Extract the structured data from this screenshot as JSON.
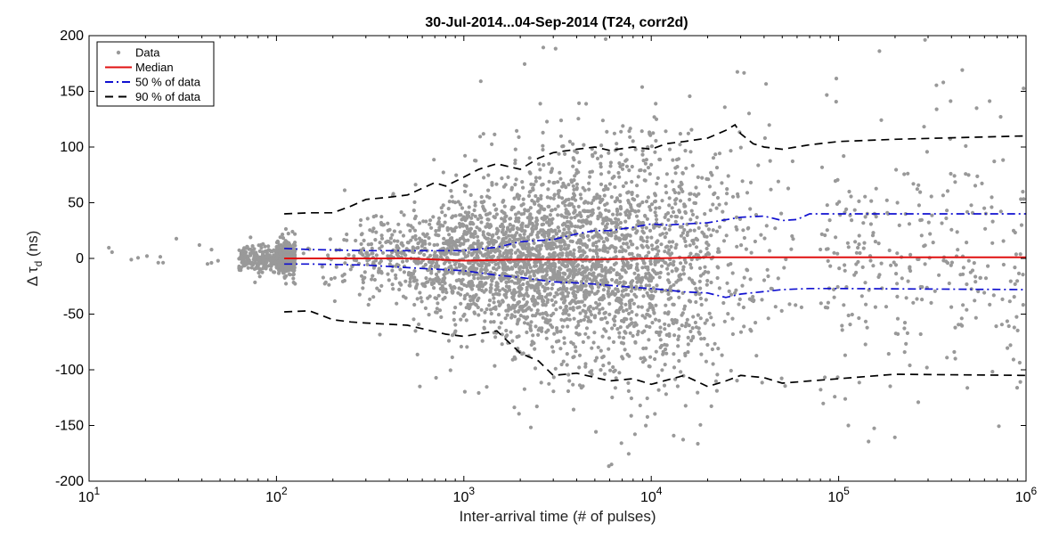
{
  "chart_data": {
    "type": "scatter",
    "title": "30-Jul-2014...04-Sep-2014 (T24, corr2d)",
    "xlabel": "Inter-arrival time (# of pulses)",
    "ylabel": "Δ τ_d (ns)",
    "ylabel_main": "Δ τ",
    "ylabel_sub": "d",
    "ylabel_unit": " (ns)",
    "xscale": "log",
    "xlim": [
      10,
      1000000
    ],
    "ylim": [
      -200,
      200
    ],
    "x_ticks": [
      {
        "base": "10",
        "exp": "1",
        "value": 10
      },
      {
        "base": "10",
        "exp": "2",
        "value": 100
      },
      {
        "base": "10",
        "exp": "3",
        "value": 1000
      },
      {
        "base": "10",
        "exp": "4",
        "value": 10000
      },
      {
        "base": "10",
        "exp": "5",
        "value": 100000
      },
      {
        "base": "10",
        "exp": "6",
        "value": 1000000
      }
    ],
    "y_ticks": [
      "-200",
      "-150",
      "-100",
      "-50",
      "0",
      "50",
      "100",
      "150",
      "200"
    ],
    "legend": [
      {
        "label": "Data",
        "style": "dots",
        "color": "#999999"
      },
      {
        "label": "Median",
        "style": "solid",
        "color": "#e01010"
      },
      {
        "label": "50 % of data",
        "style": "dashdot",
        "color": "#1010d0"
      },
      {
        "label": "90 % of data",
        "style": "dashed",
        "color": "#000000"
      }
    ],
    "legend_position": "top-left",
    "series": [
      {
        "name": "Median",
        "color": "#e01010",
        "x": [
          110,
          200,
          500,
          1000,
          2000,
          5000,
          10000,
          20000,
          50000,
          100000,
          1000000
        ],
        "y": [
          0,
          0,
          0,
          -2,
          -1,
          -1,
          0,
          1,
          1,
          1,
          1
        ]
      },
      {
        "name": "50 % of data (upper)",
        "color": "#1010d0",
        "x": [
          110,
          150,
          300,
          600,
          1000,
          1500,
          2000,
          3000,
          4000,
          5000,
          6000,
          8000,
          10000,
          12000,
          20000,
          30000,
          40000,
          50000,
          60000,
          70000,
          100000,
          1000000
        ],
        "y": [
          9,
          8,
          7,
          7,
          7,
          10,
          15,
          17,
          22,
          25,
          25,
          28,
          31,
          30,
          32,
          37,
          38,
          34,
          35,
          40,
          40,
          40
        ]
      },
      {
        "name": "50 % of data (lower)",
        "color": "#1010d0",
        "x": [
          110,
          150,
          300,
          600,
          1000,
          1500,
          2000,
          3000,
          4000,
          5000,
          8000,
          10000,
          15000,
          20000,
          25000,
          30000,
          50000,
          70000,
          100000,
          1000000
        ],
        "y": [
          -5,
          -5,
          -6,
          -9,
          -11,
          -15,
          -17,
          -21,
          -22,
          -23,
          -26,
          -27,
          -30,
          -31,
          -35,
          -32,
          -28,
          -27,
          -27,
          -28
        ]
      },
      {
        "name": "90 % of data (upper)",
        "color": "#000000",
        "x": [
          110,
          150,
          200,
          250,
          300,
          400,
          500,
          600,
          700,
          800,
          1000,
          1200,
          1500,
          2000,
          2500,
          3000,
          4000,
          5000,
          6000,
          8000,
          10000,
          12000,
          15000,
          20000,
          25000,
          28000,
          30000,
          35000,
          40000,
          50000,
          70000,
          100000,
          200000,
          1000000
        ],
        "y": [
          40,
          41,
          41,
          47,
          53,
          55,
          57,
          63,
          68,
          65,
          73,
          80,
          85,
          80,
          90,
          95,
          98,
          100,
          97,
          100,
          98,
          103,
          105,
          108,
          115,
          120,
          112,
          103,
          100,
          98,
          102,
          105,
          107,
          110
        ]
      },
      {
        "name": "90 % of data (lower)",
        "color": "#000000",
        "x": [
          110,
          150,
          200,
          250,
          300,
          500,
          800,
          1000,
          1500,
          2000,
          2500,
          3000,
          4000,
          6000,
          8000,
          10000,
          15000,
          20000,
          25000,
          30000,
          40000,
          50000,
          70000,
          100000,
          200000,
          1000000
        ],
        "y": [
          -48,
          -47,
          -55,
          -57,
          -58,
          -60,
          -68,
          -70,
          -65,
          -85,
          -92,
          -105,
          -103,
          -110,
          -108,
          -113,
          -105,
          -115,
          -110,
          -105,
          -107,
          -112,
          -110,
          -108,
          -104,
          -105
        ]
      }
    ],
    "scatter": {
      "name": "Data",
      "color": "#999999",
      "n_points": 4200,
      "note": "dense cloud; vertical spread grows from ~±10 ns near 10^2 to ~±120 ns near 10^4–10^5; sparse beyond 10^5",
      "density_profile": [
        {
          "x": 10,
          "relative": 0.01
        },
        {
          "x": 100,
          "relative": 0.15
        },
        {
          "x": 1000,
          "relative": 0.6
        },
        {
          "x": 10000,
          "relative": 1.0
        },
        {
          "x": 50000,
          "relative": 0.7
        },
        {
          "x": 100000,
          "relative": 0.15
        },
        {
          "x": 1000000,
          "relative": 0.02
        }
      ]
    }
  }
}
